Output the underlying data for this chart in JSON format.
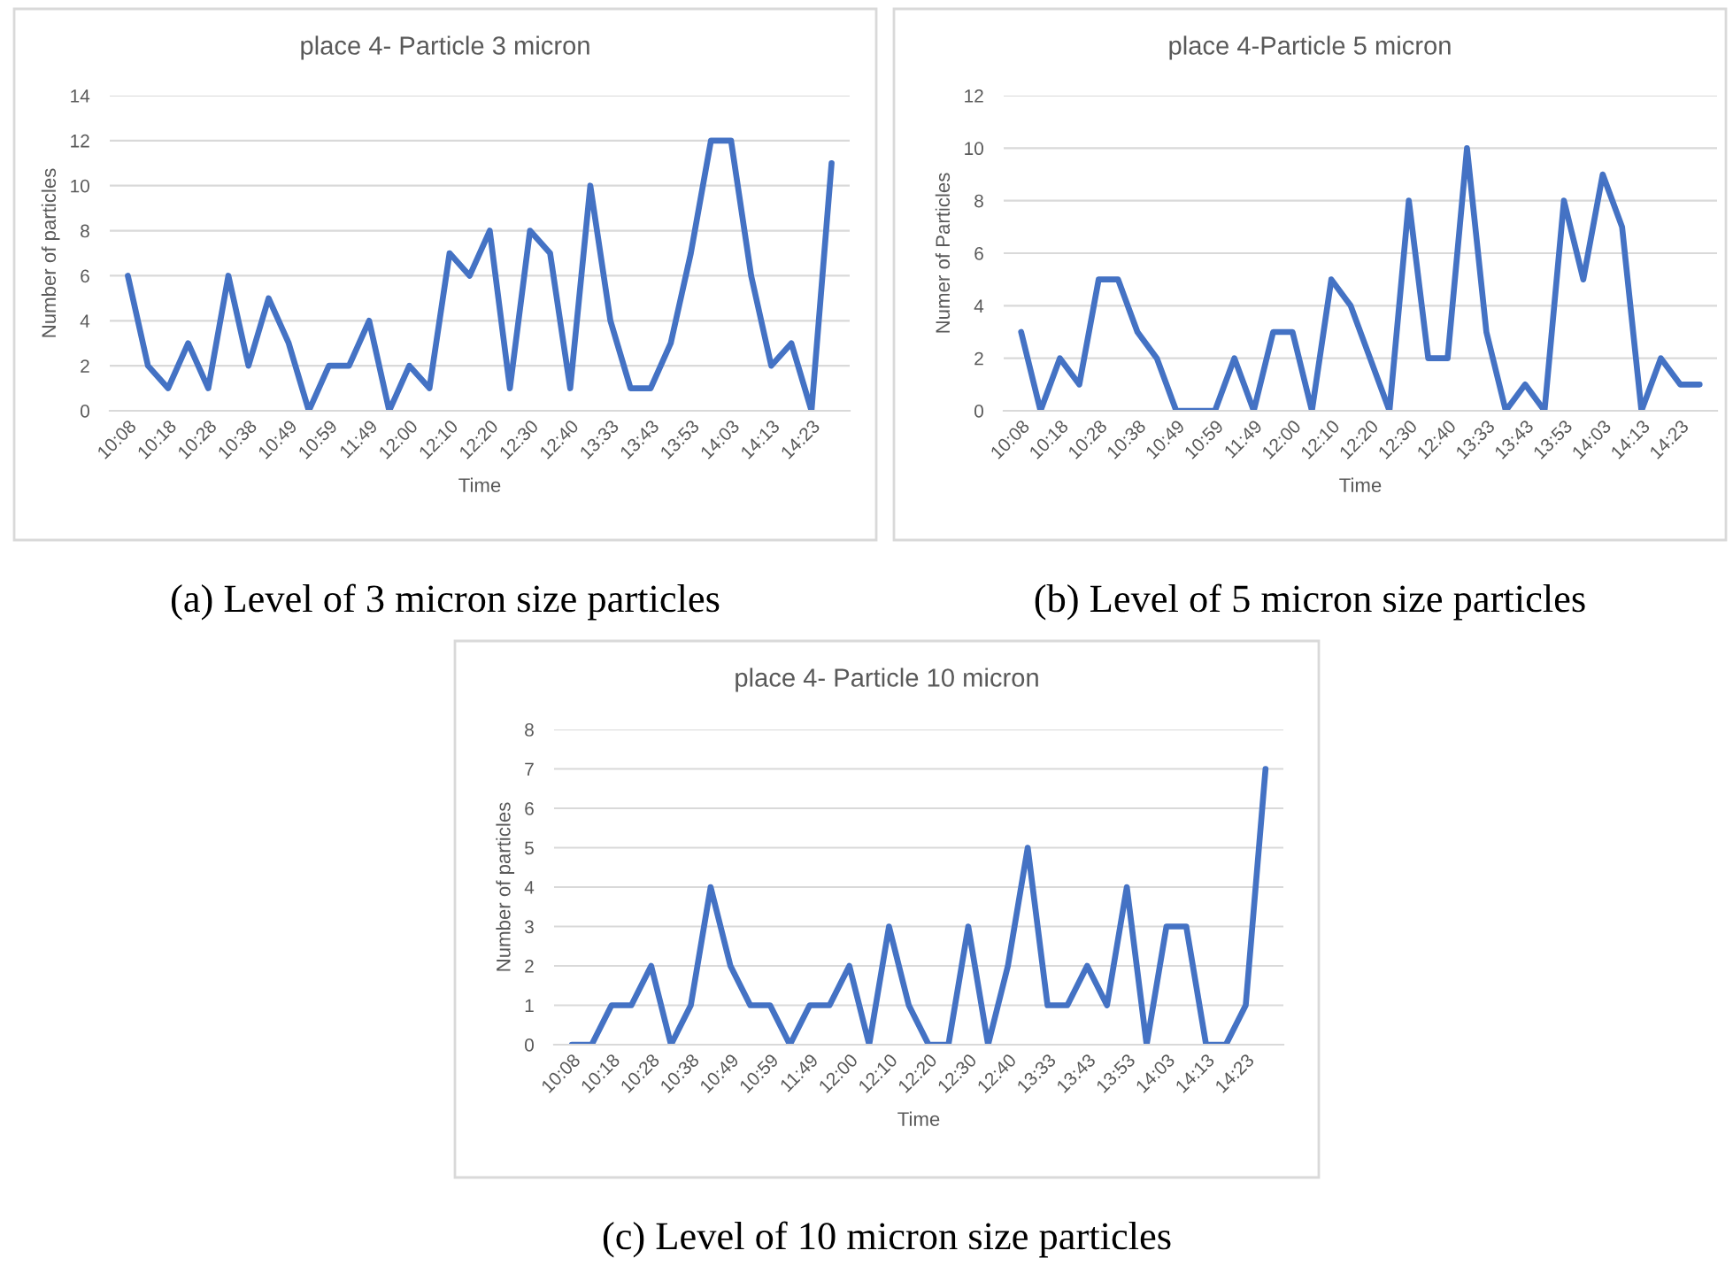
{
  "chart_data": [
    {
      "type": "line",
      "title": "place 4- Particle 3 micron",
      "xlabel": "Time",
      "ylabel": "Number of particles",
      "color": "#4472c4",
      "grid": "y",
      "ylim": [
        0,
        14
      ],
      "yticks": [
        0,
        2,
        4,
        6,
        8,
        10,
        12,
        14
      ],
      "annotations": [
        "(a) Level of 3 micron size particles"
      ],
      "categories": [
        "10:08",
        null,
        "10:18",
        null,
        "10:28",
        null,
        "10:38",
        null,
        "10:49",
        null,
        "10:59",
        null,
        "11:49",
        null,
        "12:00",
        null,
        "12:10",
        null,
        "12:20",
        null,
        "12:30",
        null,
        "12:40",
        null,
        "13:33",
        null,
        "13:43",
        null,
        "13:53",
        null,
        "14:03",
        null,
        "14:13",
        null,
        "14:23",
        null
      ],
      "values": [
        6,
        2,
        1,
        3,
        1,
        6,
        2,
        5,
        3,
        0,
        2,
        2,
        4,
        0,
        2,
        1,
        7,
        6,
        8,
        1,
        8,
        7,
        1,
        10,
        4,
        1,
        1,
        3,
        7,
        12,
        12,
        6,
        2,
        3,
        0,
        11
      ]
    },
    {
      "type": "line",
      "title": "place 4-Particle 5 micron",
      "xlabel": "Time",
      "ylabel": "Numer of Particles",
      "color": "#4472c4",
      "grid": "y",
      "ylim": [
        0,
        12
      ],
      "yticks": [
        0,
        2,
        4,
        6,
        8,
        10,
        12
      ],
      "annotations": [
        "(b) Level of 5 micron size particles"
      ],
      "categories": [
        "10:08",
        null,
        "10:18",
        null,
        "10:28",
        null,
        "10:38",
        null,
        "10:49",
        null,
        "10:59",
        null,
        "11:49",
        null,
        "12:00",
        null,
        "12:10",
        null,
        "12:20",
        null,
        "12:30",
        null,
        "12:40",
        null,
        "13:33",
        null,
        "13:43",
        null,
        "13:53",
        null,
        "14:03",
        null,
        "14:13",
        null,
        "14:23",
        null
      ],
      "values": [
        3,
        0,
        2,
        1,
        5,
        5,
        3,
        2,
        0,
        0,
        0,
        2,
        0,
        3,
        3,
        0,
        5,
        4,
        2,
        0,
        8,
        2,
        2,
        10,
        3,
        0,
        1,
        0,
        8,
        5,
        9,
        7,
        0,
        2,
        1,
        1
      ]
    },
    {
      "type": "line",
      "title": "place 4- Particle 10 micron",
      "xlabel": "Time",
      "ylabel": "Number of particles",
      "color": "#4472c4",
      "grid": "y",
      "ylim": [
        0,
        8
      ],
      "yticks": [
        0,
        1,
        2,
        3,
        4,
        5,
        6,
        7,
        8
      ],
      "annotations": [
        "(c) Level of 10 micron size particles"
      ],
      "categories": [
        "10:08",
        null,
        "10:18",
        null,
        "10:28",
        null,
        "10:38",
        null,
        "10:49",
        null,
        "10:59",
        null,
        "11:49",
        null,
        "12:00",
        null,
        "12:10",
        null,
        "12:20",
        null,
        "12:30",
        null,
        "12:40",
        null,
        "13:33",
        null,
        "13:43",
        null,
        "13:53",
        null,
        "14:03",
        null,
        "14:13",
        null,
        "14:23",
        null
      ],
      "values": [
        0,
        0,
        1,
        1,
        2,
        0,
        1,
        4,
        2,
        1,
        1,
        0,
        1,
        1,
        2,
        0,
        3,
        1,
        0,
        0,
        3,
        0,
        2,
        5,
        1,
        1,
        2,
        1,
        4,
        0,
        3,
        3,
        0,
        0,
        1,
        7
      ]
    }
  ]
}
